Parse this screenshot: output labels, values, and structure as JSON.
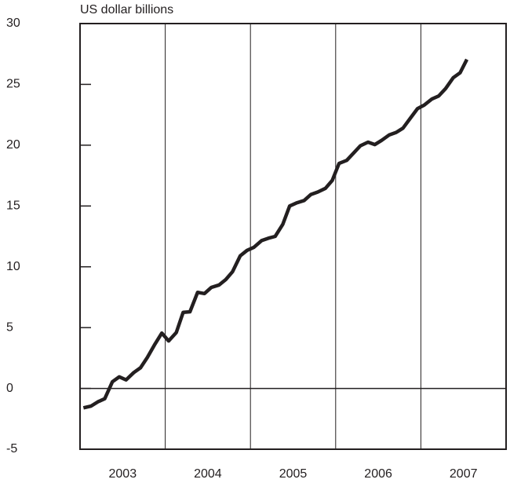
{
  "chart_data": {
    "type": "line",
    "y_label": "US dollar billions",
    "x": [
      2003.04,
      2003.13,
      2003.21,
      2003.29,
      2003.38,
      2003.46,
      2003.54,
      2003.63,
      2003.71,
      2003.79,
      2003.88,
      2003.96,
      2004.04,
      2004.13,
      2004.21,
      2004.29,
      2004.38,
      2004.46,
      2004.54,
      2004.63,
      2004.71,
      2004.79,
      2004.88,
      2004.96,
      2005.04,
      2005.13,
      2005.21,
      2005.29,
      2005.38,
      2005.46,
      2005.54,
      2005.63,
      2005.71,
      2005.79,
      2005.88,
      2005.96,
      2006.04,
      2006.13,
      2006.21,
      2006.29,
      2006.38,
      2006.46,
      2006.54,
      2006.63,
      2006.71,
      2006.79,
      2006.88,
      2006.96,
      2007.04,
      2007.13,
      2007.21,
      2007.29,
      2007.38,
      2007.46,
      2007.54
    ],
    "series": [
      {
        "color": "#231f20",
        "values": [
          -1.6,
          -1.45,
          -1.1,
          -0.85,
          0.55,
          0.95,
          0.7,
          1.3,
          1.7,
          2.55,
          3.65,
          4.55,
          3.9,
          4.6,
          6.25,
          6.3,
          7.9,
          7.8,
          8.3,
          8.5,
          8.95,
          9.6,
          10.9,
          11.35,
          11.6,
          12.15,
          12.35,
          12.5,
          13.5,
          15.0,
          15.25,
          15.45,
          15.95,
          16.15,
          16.45,
          17.1,
          18.5,
          18.75,
          19.35,
          19.95,
          20.25,
          20.05,
          20.4,
          20.85,
          21.05,
          21.4,
          22.25,
          23.0,
          23.3,
          23.8,
          24.05,
          24.65,
          25.55,
          25.95,
          27.05
        ]
      }
    ],
    "xlim": [
      2003,
      2008
    ],
    "xticks": [
      {
        "value": 2003.5,
        "label": "2003"
      },
      {
        "value": 2004.5,
        "label": "2004"
      },
      {
        "value": 2005.5,
        "label": "2005"
      },
      {
        "value": 2006.5,
        "label": "2006"
      },
      {
        "value": 2007.5,
        "label": "2007"
      }
    ],
    "xgrid_lines": [
      2004,
      2005,
      2006,
      2007
    ],
    "ylim": [
      -5,
      30
    ],
    "yticks": [
      -5,
      0,
      5,
      10,
      15,
      20,
      25,
      30
    ],
    "zero_line": true
  }
}
